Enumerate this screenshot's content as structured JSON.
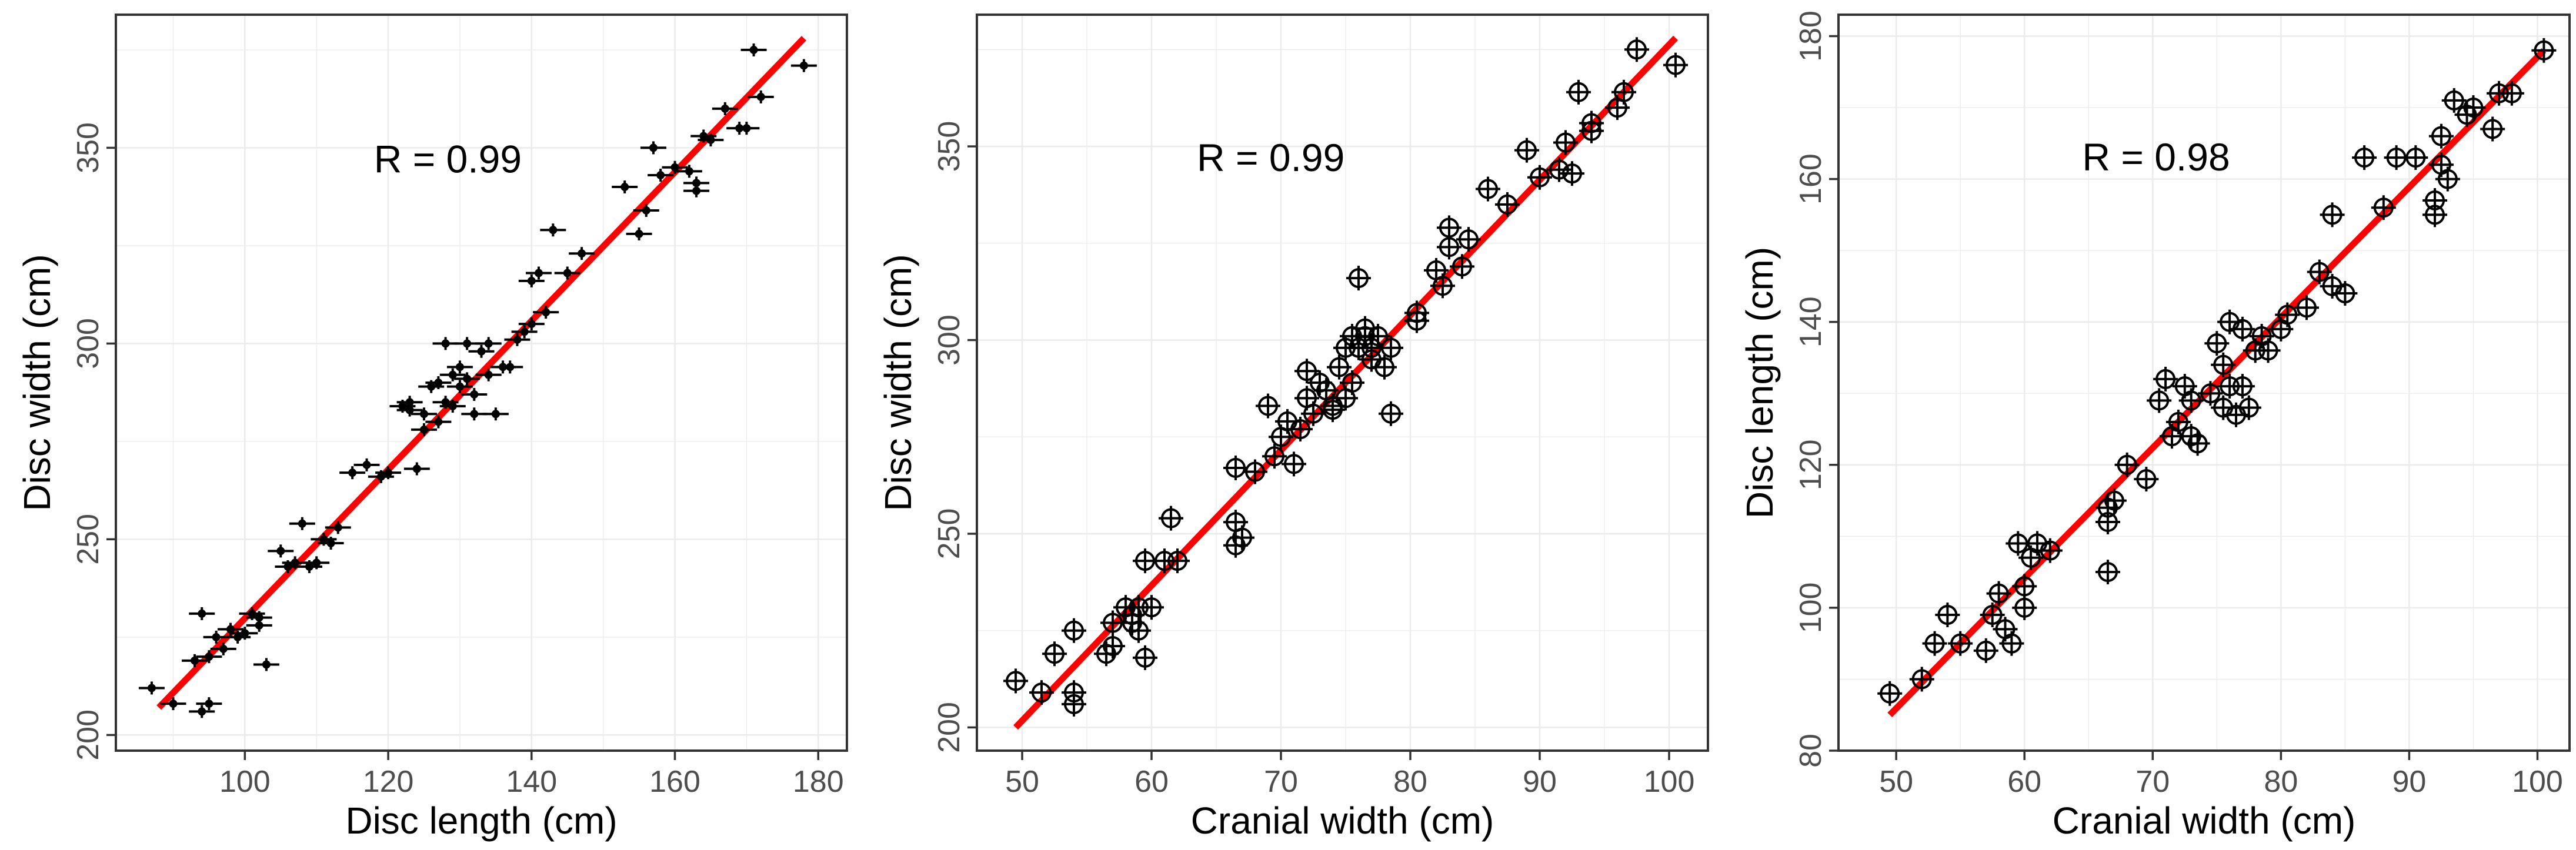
{
  "colors": {
    "fit_line": "#ff0000",
    "points": "#000000",
    "grid": "#ebebeb",
    "panel_border": "#333333",
    "tick_text": "#4d4d4d"
  },
  "chart_data": [
    {
      "type": "scatter",
      "title": "",
      "xlabel": "Disc length (cm)",
      "ylabel": "Disc width (cm)",
      "xlim": [
        82,
        184
      ],
      "ylim": [
        196,
        384
      ],
      "xticks": [
        100,
        120,
        140,
        160,
        180
      ],
      "yticks": [
        200,
        250,
        300,
        350
      ],
      "grid": true,
      "marker": "cross",
      "annotation": {
        "text": "R = 0.99",
        "x": 118,
        "y": 347
      },
      "fit_line": {
        "x": [
          88,
          178
        ],
        "y": [
          207,
          378
        ]
      },
      "points": [
        [
          87,
          212
        ],
        [
          90,
          208
        ],
        [
          93,
          219
        ],
        [
          94,
          206
        ],
        [
          95,
          208
        ],
        [
          94,
          231
        ],
        [
          95,
          220
        ],
        [
          96,
          225
        ],
        [
          97,
          222
        ],
        [
          98,
          227
        ],
        [
          99,
          225
        ],
        [
          100,
          226
        ],
        [
          101,
          231
        ],
        [
          102,
          228
        ],
        [
          102,
          230
        ],
        [
          103,
          218
        ],
        [
          105,
          247
        ],
        [
          106,
          243
        ],
        [
          107,
          244
        ],
        [
          108,
          254
        ],
        [
          109,
          243
        ],
        [
          110,
          244
        ],
        [
          111,
          250
        ],
        [
          112,
          249
        ],
        [
          113,
          253
        ],
        [
          115,
          267
        ],
        [
          117,
          269
        ],
        [
          119,
          266
        ],
        [
          120,
          267
        ],
        [
          122,
          284
        ],
        [
          123,
          285
        ],
        [
          123,
          283
        ],
        [
          124,
          268
        ],
        [
          125,
          278
        ],
        [
          125,
          282
        ],
        [
          126,
          289
        ],
        [
          127,
          290
        ],
        [
          127,
          280
        ],
        [
          128,
          285
        ],
        [
          128,
          300
        ],
        [
          129,
          292
        ],
        [
          129,
          284
        ],
        [
          130,
          289
        ],
        [
          130,
          294
        ],
        [
          131,
          291
        ],
        [
          131,
          300
        ],
        [
          132,
          287
        ],
        [
          132,
          282
        ],
        [
          133,
          298
        ],
        [
          134,
          292
        ],
        [
          134,
          300
        ],
        [
          135,
          282
        ],
        [
          136,
          294
        ],
        [
          137,
          294
        ],
        [
          138,
          301
        ],
        [
          139,
          303
        ],
        [
          140,
          305
        ],
        [
          140,
          316
        ],
        [
          141,
          318
        ],
        [
          142,
          308
        ],
        [
          143,
          329
        ],
        [
          145,
          318
        ],
        [
          147,
          323
        ],
        [
          153,
          340
        ],
        [
          155,
          328
        ],
        [
          156,
          334
        ],
        [
          157,
          350
        ],
        [
          158,
          343
        ],
        [
          160,
          345
        ],
        [
          162,
          344
        ],
        [
          163,
          339
        ],
        [
          163,
          341
        ],
        [
          164,
          353
        ],
        [
          165,
          352
        ],
        [
          167,
          360
        ],
        [
          169,
          355
        ],
        [
          170,
          355
        ],
        [
          171,
          375
        ],
        [
          172,
          363
        ],
        [
          178,
          371
        ]
      ]
    },
    {
      "type": "scatter",
      "title": "",
      "xlabel": "Cranial width (cm)",
      "ylabel": "Disc width (cm)",
      "xlim": [
        46.5,
        103
      ],
      "ylim": [
        194,
        384
      ],
      "xticks": [
        50,
        60,
        70,
        80,
        90,
        100
      ],
      "yticks": [
        200,
        250,
        300,
        350
      ],
      "grid": true,
      "marker": "circle-cross",
      "annotation": {
        "text": "R = 0.99",
        "x": 63.5,
        "y": 347
      },
      "fit_line": {
        "x": [
          49.5,
          100.5
        ],
        "y": [
          200,
          378
        ]
      },
      "points": [
        [
          49.5,
          212
        ],
        [
          51.5,
          209
        ],
        [
          52.5,
          219
        ],
        [
          54,
          206
        ],
        [
          54,
          209
        ],
        [
          54,
          225
        ],
        [
          56.5,
          219
        ],
        [
          57,
          221
        ],
        [
          57,
          227
        ],
        [
          58,
          231
        ],
        [
          58.5,
          227
        ],
        [
          58.5,
          229
        ],
        [
          59,
          231
        ],
        [
          59,
          225
        ],
        [
          59.5,
          218
        ],
        [
          59.5,
          243
        ],
        [
          60,
          231
        ],
        [
          61,
          243
        ],
        [
          61.5,
          254
        ],
        [
          62,
          243
        ],
        [
          66.5,
          247
        ],
        [
          66.5,
          253
        ],
        [
          66.5,
          267
        ],
        [
          67,
          249
        ],
        [
          68,
          266
        ],
        [
          69,
          283
        ],
        [
          69.5,
          270
        ],
        [
          70,
          275
        ],
        [
          70.5,
          279
        ],
        [
          71,
          268
        ],
        [
          71.5,
          277
        ],
        [
          72,
          292
        ],
        [
          72,
          285
        ],
        [
          72.5,
          281
        ],
        [
          73,
          289
        ],
        [
          73.5,
          287
        ],
        [
          74,
          283
        ],
        [
          74,
          282
        ],
        [
          74.5,
          293
        ],
        [
          75,
          298
        ],
        [
          75,
          285
        ],
        [
          75.5,
          289
        ],
        [
          75.5,
          301
        ],
        [
          76,
          298
        ],
        [
          76,
          316
        ],
        [
          76.5,
          301
        ],
        [
          76.5,
          303
        ],
        [
          77,
          295
        ],
        [
          77,
          298
        ],
        [
          77.5,
          301
        ],
        [
          78,
          293
        ],
        [
          78.5,
          298
        ],
        [
          78.5,
          281
        ],
        [
          80.5,
          305
        ],
        [
          80.5,
          307
        ],
        [
          82,
          318
        ],
        [
          82.5,
          314
        ],
        [
          83,
          324
        ],
        [
          83,
          329
        ],
        [
          84,
          319
        ],
        [
          84.5,
          326
        ],
        [
          86,
          339
        ],
        [
          87.5,
          335
        ],
        [
          89,
          349
        ],
        [
          90,
          342
        ],
        [
          91.5,
          344
        ],
        [
          92,
          351
        ],
        [
          92.5,
          343
        ],
        [
          93,
          364
        ],
        [
          94,
          354
        ],
        [
          94,
          356
        ],
        [
          96,
          360
        ],
        [
          96.5,
          364
        ],
        [
          97.5,
          375
        ],
        [
          100.5,
          371
        ]
      ]
    },
    {
      "type": "scatter",
      "title": "",
      "xlabel": "Cranial width (cm)",
      "ylabel": "Disc length (cm)",
      "xlim": [
        45.5,
        102.5
      ],
      "ylim": [
        80,
        183
      ],
      "xticks": [
        50,
        60,
        70,
        80,
        90,
        100
      ],
      "yticks": [
        80,
        100,
        120,
        140,
        160,
        180
      ],
      "grid": true,
      "marker": "circle-cross",
      "annotation": {
        "text": "R = 0.98",
        "x": 64.5,
        "y": 163
      },
      "fit_line": {
        "x": [
          49.5,
          100.5
        ],
        "y": [
          85,
          178
        ]
      },
      "points": [
        [
          49.5,
          88
        ],
        [
          52,
          90
        ],
        [
          53,
          95
        ],
        [
          54,
          99
        ],
        [
          55,
          95
        ],
        [
          57,
          94
        ],
        [
          57.5,
          99
        ],
        [
          58,
          102
        ],
        [
          58.5,
          97
        ],
        [
          59,
          95
        ],
        [
          59.5,
          109
        ],
        [
          60,
          100
        ],
        [
          60,
          103
        ],
        [
          60.5,
          107
        ],
        [
          61,
          109
        ],
        [
          62,
          108
        ],
        [
          66.5,
          105
        ],
        [
          66.5,
          112
        ],
        [
          66.5,
          114
        ],
        [
          67,
          115
        ],
        [
          68,
          120
        ],
        [
          69.5,
          118
        ],
        [
          70.5,
          129
        ],
        [
          71,
          132
        ],
        [
          71.5,
          124
        ],
        [
          72,
          126
        ],
        [
          72.5,
          131
        ],
        [
          73,
          124
        ],
        [
          73,
          129
        ],
        [
          73.5,
          123
        ],
        [
          74.5,
          130
        ],
        [
          75,
          137
        ],
        [
          75.5,
          128
        ],
        [
          75.5,
          134
        ],
        [
          76,
          131
        ],
        [
          76,
          140
        ],
        [
          76.5,
          127
        ],
        [
          77,
          131
        ],
        [
          77,
          139
        ],
        [
          77.5,
          128
        ],
        [
          78,
          136
        ],
        [
          78.5,
          138
        ],
        [
          79,
          136
        ],
        [
          80,
          139
        ],
        [
          80.5,
          141
        ],
        [
          82,
          142
        ],
        [
          83,
          147
        ],
        [
          84,
          145
        ],
        [
          84,
          155
        ],
        [
          85,
          144
        ],
        [
          86.5,
          163
        ],
        [
          88,
          156
        ],
        [
          89,
          163
        ],
        [
          90.5,
          163
        ],
        [
          92,
          155
        ],
        [
          92,
          157
        ],
        [
          92.5,
          162
        ],
        [
          92.5,
          166
        ],
        [
          93,
          160
        ],
        [
          93.5,
          171
        ],
        [
          94.5,
          169
        ],
        [
          95,
          170
        ],
        [
          96.5,
          167
        ],
        [
          97,
          172
        ],
        [
          98,
          172
        ],
        [
          100.5,
          178
        ]
      ]
    }
  ]
}
